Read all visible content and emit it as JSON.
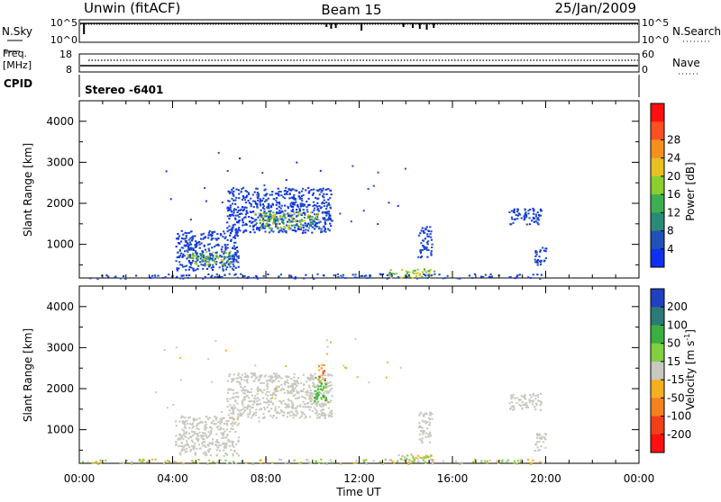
{
  "header": {
    "radar": "Unwin (fitACF)",
    "beam": "Beam 15",
    "date": "25/Jan/2009"
  },
  "noise_panel": {
    "left_label": "N.Sky",
    "right_label": "N.Search",
    "ticks_left": [
      "10^5",
      "10^0"
    ],
    "ticks_right": [
      "10^5",
      "10^0"
    ]
  },
  "freq_panel": {
    "left_label_1": "Freq.",
    "left_label_2": "[MHz]",
    "right_label": "Nave",
    "ticks_left": [
      "18",
      "8"
    ],
    "ticks_right": [
      "60",
      "0"
    ]
  },
  "cpid": {
    "label": "CPID",
    "value": "Stereo -6401"
  },
  "x_axis": {
    "label": "Time UT",
    "ticks": [
      "00:00",
      "04:00",
      "08:00",
      "12:00",
      "16:00",
      "20:00",
      "00:00"
    ]
  },
  "chart_data": [
    {
      "type": "heatmap",
      "name": "power",
      "ylabel": "Slant Range [km]",
      "xlabel": "Time UT",
      "xlim_hours": [
        0,
        24
      ],
      "ylim_km": [
        180,
        4500
      ],
      "y_ticks": [
        "1000",
        "2000",
        "3000",
        "4000"
      ],
      "colorbar": {
        "label": "Power [dB]",
        "ticks": [
          "4",
          "8",
          "12",
          "16",
          "20",
          "24",
          "28"
        ],
        "colors": [
          "#1030f0",
          "#2050b8",
          "#2a8a78",
          "#3cb050",
          "#8ccd30",
          "#e8c020",
          "#f59020",
          "#ff5020",
          "#ff1010"
        ]
      },
      "echo_regions": [
        {
          "t0": 4.1,
          "t1": 6.8,
          "r0": 380,
          "r1": 1350,
          "level": "weak"
        },
        {
          "t0": 4.6,
          "t1": 6.5,
          "r0": 520,
          "r1": 850,
          "level": "strong"
        },
        {
          "t0": 6.3,
          "t1": 10.8,
          "r0": 1300,
          "r1": 2400,
          "level": "weak"
        },
        {
          "t0": 7.5,
          "t1": 10.3,
          "r0": 1400,
          "r1": 1800,
          "level": "strong"
        },
        {
          "t0": 13.2,
          "t1": 15.2,
          "r0": 200,
          "r1": 420,
          "level": "medium"
        },
        {
          "t0": 14.5,
          "t1": 15.1,
          "r0": 700,
          "r1": 1450,
          "level": "weak"
        },
        {
          "t0": 18.4,
          "t1": 19.8,
          "r0": 1500,
          "r1": 1900,
          "level": "weak"
        },
        {
          "t0": 19.5,
          "t1": 20.0,
          "r0": 500,
          "r1": 950,
          "level": "weak"
        },
        {
          "t0": 0.0,
          "t1": 20.0,
          "r0": 180,
          "r1": 300,
          "level": "weak"
        }
      ]
    },
    {
      "type": "heatmap",
      "name": "velocity",
      "ylabel": "Slant Range [km]",
      "xlabel": "Time UT",
      "xlim_hours": [
        0,
        24
      ],
      "ylim_km": [
        180,
        4500
      ],
      "y_ticks": [
        "1000",
        "2000",
        "3000",
        "4000"
      ],
      "colorbar": {
        "label": "Velocity [m s^-1]",
        "ticks": [
          "200",
          "100",
          "50",
          "15",
          "-15",
          "-50",
          "-100",
          "-200"
        ],
        "colors": [
          "#2040c0",
          "#2a7a78",
          "#3ab040",
          "#80d040",
          "#c8c8c0",
          "#f5b020",
          "#f58020",
          "#f04018",
          "#ff1010"
        ]
      },
      "echo_regions": [
        {
          "t0": 4.1,
          "t1": 6.8,
          "r0": 380,
          "r1": 1350,
          "level": "ground"
        },
        {
          "t0": 6.3,
          "t1": 10.8,
          "r0": 1300,
          "r1": 2400,
          "level": "ground"
        },
        {
          "t0": 10.0,
          "t1": 10.6,
          "r0": 1700,
          "r1": 2300,
          "level": "positive"
        },
        {
          "t0": 10.2,
          "t1": 10.5,
          "r0": 2200,
          "r1": 2600,
          "level": "negative"
        },
        {
          "t0": 13.2,
          "t1": 15.2,
          "r0": 200,
          "r1": 420,
          "level": "mixed"
        },
        {
          "t0": 14.5,
          "t1": 15.1,
          "r0": 700,
          "r1": 1450,
          "level": "ground"
        },
        {
          "t0": 18.4,
          "t1": 19.8,
          "r0": 1500,
          "r1": 1900,
          "level": "ground"
        },
        {
          "t0": 19.5,
          "t1": 20.0,
          "r0": 500,
          "r1": 950,
          "level": "ground"
        },
        {
          "t0": 0.0,
          "t1": 20.0,
          "r0": 180,
          "r1": 300,
          "level": "mixed"
        }
      ]
    }
  ]
}
